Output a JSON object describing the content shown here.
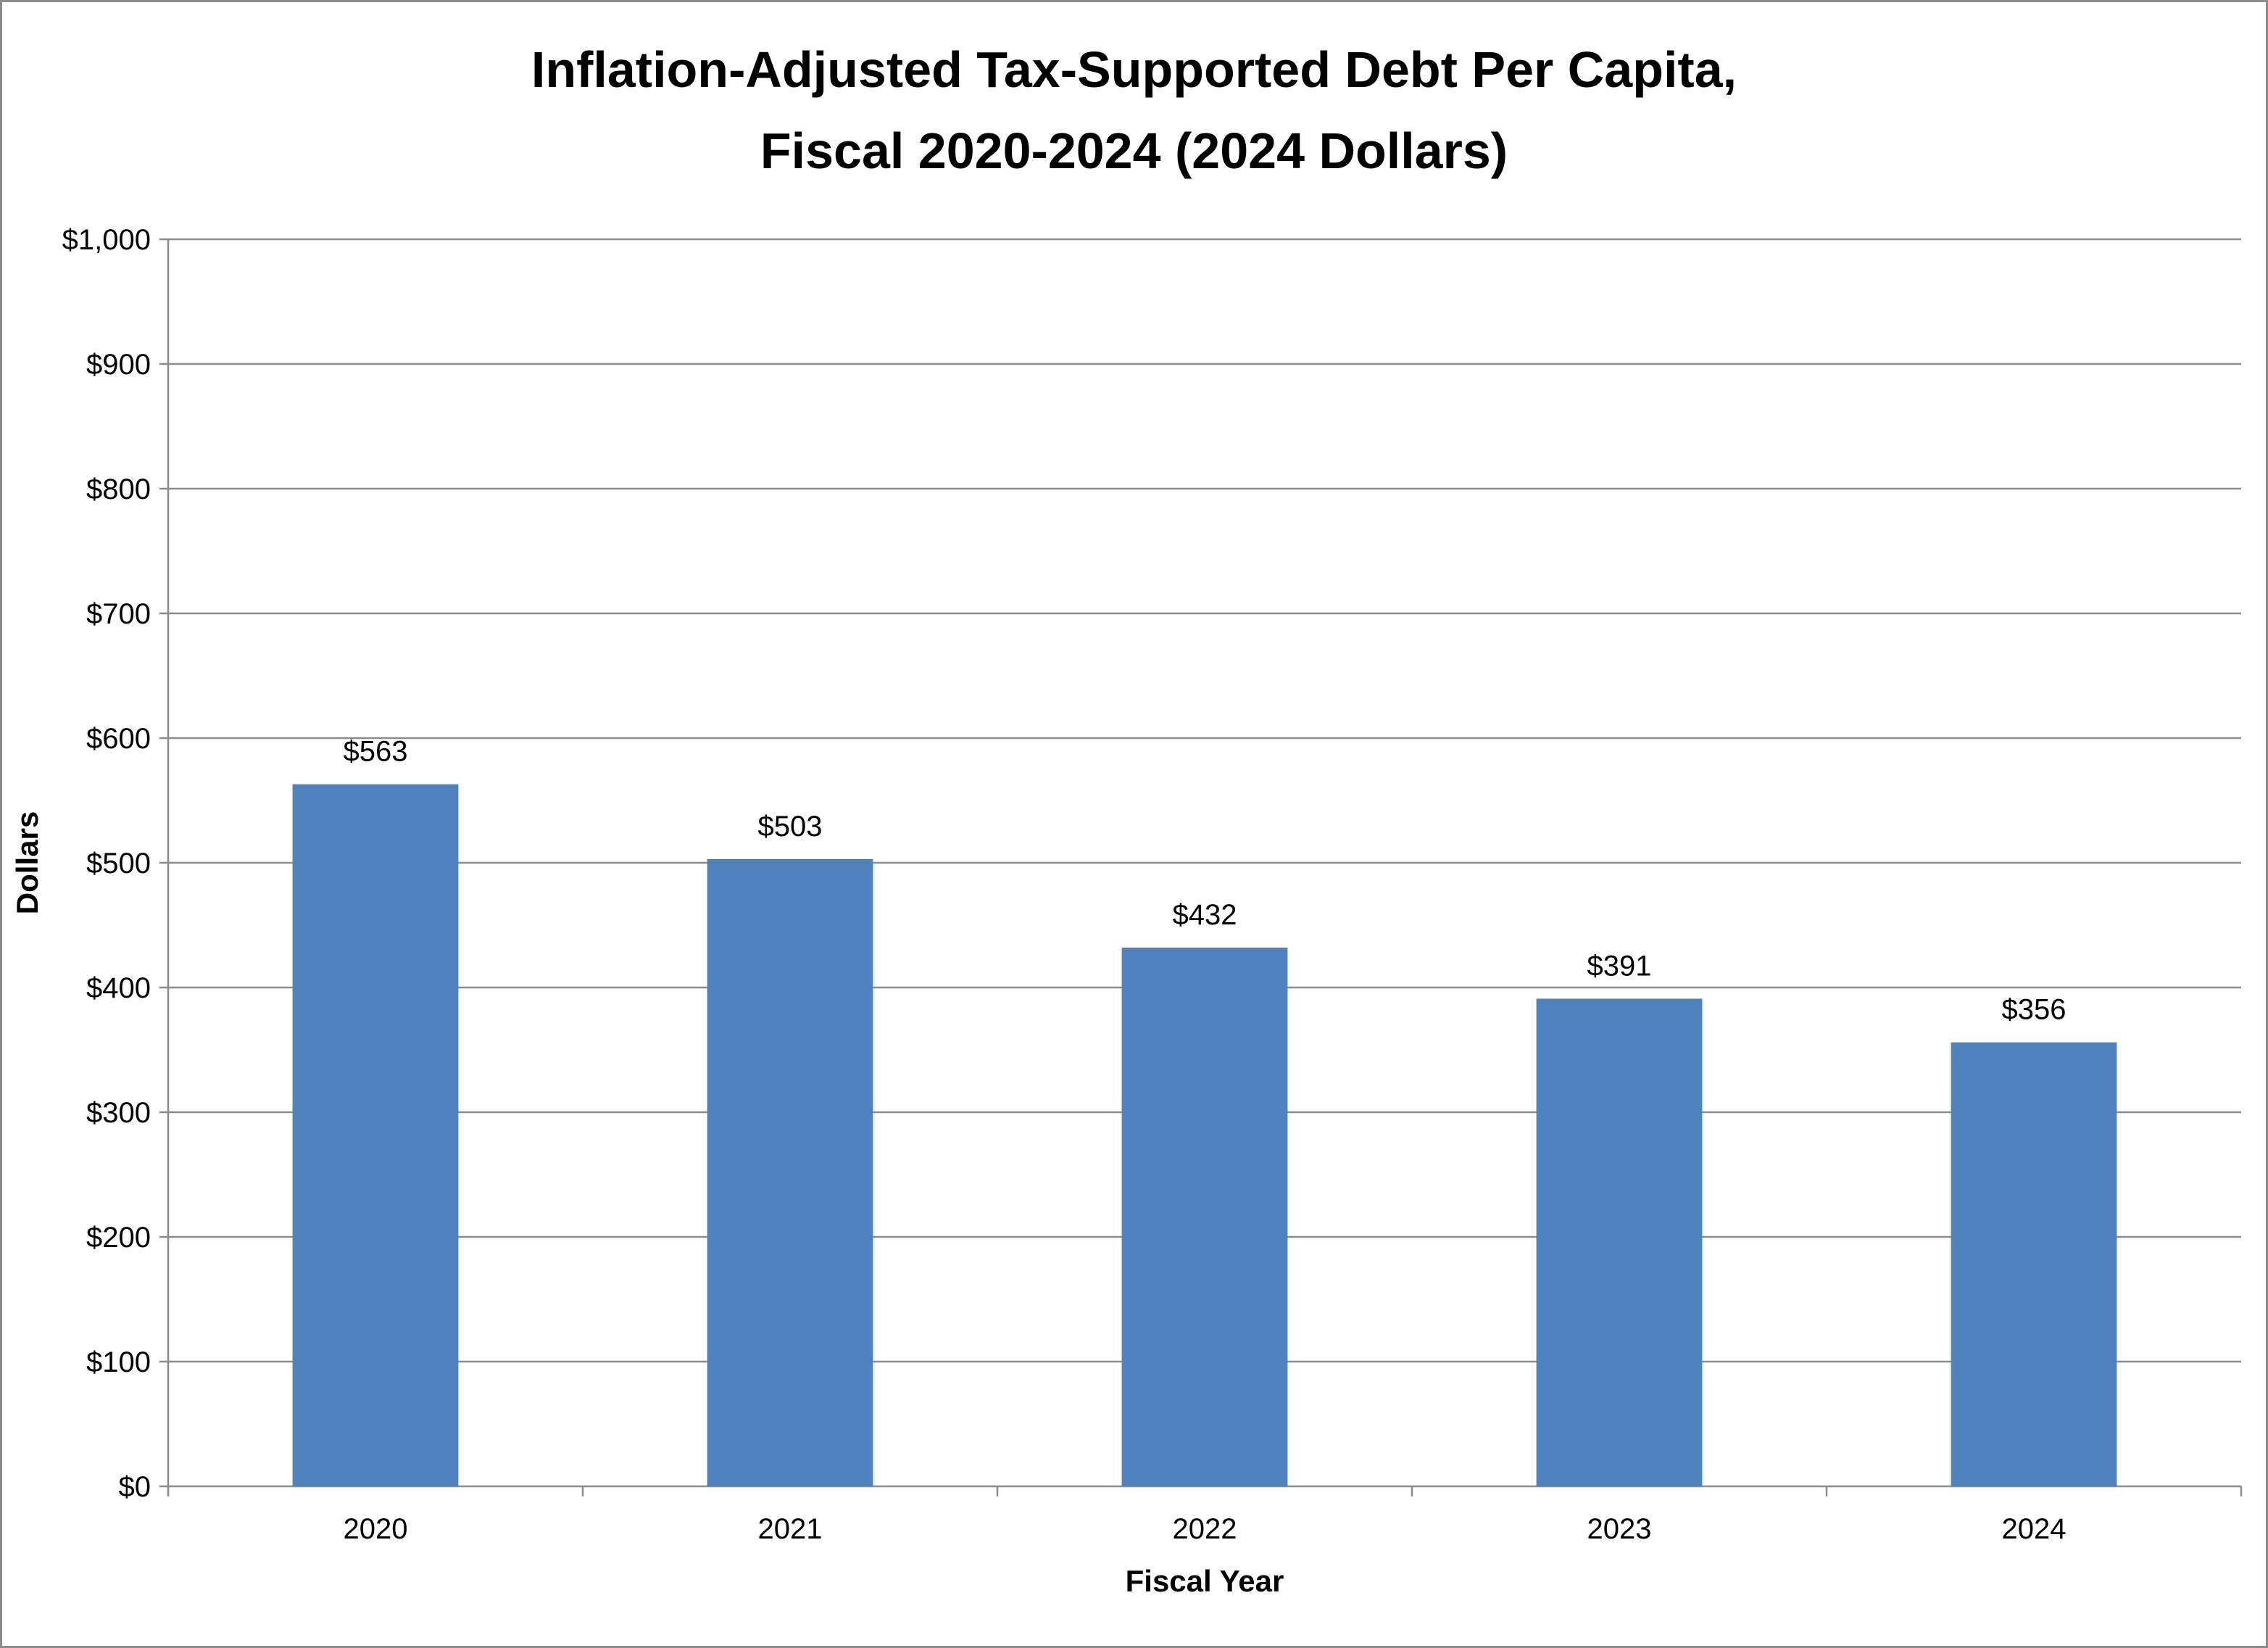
{
  "chart_data": {
    "type": "bar",
    "title_lines": [
      "Inflation-Adjusted Tax-Supported Debt Per Capita,",
      "Fiscal 2020-2024 (2024 Dollars)"
    ],
    "categories": [
      "2020",
      "2021",
      "2022",
      "2023",
      "2024"
    ],
    "values": [
      563,
      503,
      432,
      391,
      356
    ],
    "data_labels": [
      "$563",
      "$503",
      "$432",
      "$391",
      "$356"
    ],
    "xlabel": "Fiscal Year",
    "ylabel": "Dollars",
    "ylim": [
      0,
      1000
    ],
    "yticks": [
      0,
      100,
      200,
      300,
      400,
      500,
      600,
      700,
      800,
      900,
      1000
    ],
    "ytick_labels": [
      "$0",
      "$100",
      "$200",
      "$300",
      "$400",
      "$500",
      "$600",
      "$700",
      "$800",
      "$900",
      "$1,000"
    ],
    "grid": true,
    "legend": "none",
    "bar_color": "#4f81bd",
    "grid_color": "#8c8c8c"
  }
}
